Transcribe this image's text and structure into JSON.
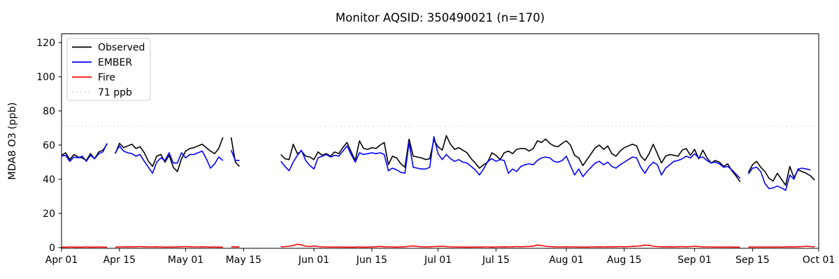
{
  "title": "Monitor AQSID: 350490021 (n=170)",
  "ylabel": "MDA8 O3 (ppb)",
  "colors": {
    "observed": "#000000",
    "ember": "#0000ff",
    "fire": "#ff0000",
    "threshold": "#d3d3d3",
    "axis": "#000000",
    "legend_border": "#cccccc",
    "background": "#ffffff"
  },
  "chart_data": {
    "type": "line",
    "title": "Monitor AQSID: 350490021 (n=170)",
    "xlabel": "",
    "ylabel": "MDA8 O3 (ppb)",
    "ylim": [
      -0.5,
      125.4
    ],
    "yticks": [
      0,
      20,
      40,
      60,
      80,
      100,
      120
    ],
    "x_tick_labels": [
      "Apr 01",
      "Apr 15",
      "May 01",
      "May 15",
      "Jun 01",
      "Jun 15",
      "Jul 01",
      "Jul 15",
      "Aug 01",
      "Aug 15",
      "Sep 01",
      "Sep 15",
      "Oct 01"
    ],
    "x_tick_days": [
      0,
      14,
      30,
      44,
      61,
      75,
      91,
      105,
      122,
      136,
      153,
      167,
      183
    ],
    "x_total_days": 183,
    "x_start_date": "Apr 01",
    "x_end_date": "Oct 01",
    "grid": false,
    "legend_position": "upper left",
    "reference_line": {
      "label": "71 ppb",
      "value": 71,
      "color": "#d3d3d3",
      "style": "dotted"
    },
    "legend": [
      {
        "label": "Observed",
        "color": "#000000",
        "dash": "solid"
      },
      {
        "label": "EMBER",
        "color": "#0000ff",
        "dash": "solid"
      },
      {
        "label": "Fire",
        "color": "#ff0000",
        "dash": "solid"
      },
      {
        "label": "71 ppb",
        "color": "#d3d3d3",
        "dash": "dotted"
      }
    ],
    "series": [
      {
        "name": "Observed",
        "color": "#000000",
        "values": [
          54,
          55.5,
          51.5,
          54.5,
          53,
          52.5,
          51,
          55,
          52,
          56,
          57,
          60.5,
          null,
          55,
          61,
          58.5,
          59.5,
          60.5,
          58,
          59,
          55.5,
          50.5,
          47.5,
          53.5,
          54.5,
          50,
          54,
          47,
          44.5,
          52,
          56.5,
          58,
          58.5,
          59.5,
          60.5,
          58.5,
          56.5,
          55,
          58,
          64.5,
          null,
          64.5,
          50,
          47.5,
          null,
          null,
          null,
          null,
          null,
          null,
          null,
          null,
          null,
          54.5,
          52,
          51.5,
          60.5,
          55,
          56.5,
          53.5,
          53,
          51.5,
          56,
          54,
          55,
          53.5,
          56,
          55,
          58.5,
          61.5,
          56,
          51,
          62.5,
          58,
          57.5,
          58.5,
          58,
          60,
          61.5,
          48.5,
          53.5,
          52.5,
          49,
          47,
          63.5,
          53.5,
          53,
          52.5,
          51.5,
          52,
          63,
          59,
          57,
          65.5,
          60.5,
          57.5,
          58.5,
          57,
          55.5,
          52,
          49.5,
          46.5,
          48.5,
          50,
          55.5,
          54,
          51.5,
          55.5,
          56.5,
          55,
          57.5,
          58,
          58,
          56.5,
          58,
          62.5,
          61.5,
          63.5,
          61,
          59.5,
          59,
          61,
          62.5,
          60,
          54,
          52.5,
          48,
          51.5,
          55,
          58.5,
          60,
          57.5,
          59.5,
          55,
          53.5,
          56.5,
          58.5,
          59.5,
          60.5,
          59.5,
          53.5,
          51,
          55,
          60.5,
          55,
          49.5,
          53.5,
          54.5,
          54,
          53.5,
          57,
          58,
          54,
          57.5,
          52,
          57,
          52.5,
          49.5,
          51,
          50,
          47.5,
          49,
          45,
          42,
          38.5,
          null,
          44,
          48.5,
          50.5,
          47,
          44.5,
          40.5,
          39,
          43.5,
          40,
          36.5,
          47.5,
          41,
          45.5,
          44.5,
          43.5,
          42,
          39.5
        ]
      },
      {
        "name": "EMBER",
        "color": "#0000ff",
        "values": [
          53.5,
          54,
          50.5,
          53,
          52.5,
          53.5,
          50.5,
          54,
          52,
          55,
          56,
          61,
          null,
          55.5,
          59.5,
          56.5,
          55.5,
          55,
          53.5,
          54.5,
          50.5,
          47,
          43.5,
          50,
          52.5,
          51,
          55.5,
          49.5,
          49.5,
          55.5,
          52.5,
          54.5,
          54.5,
          55.5,
          56.5,
          52,
          46.5,
          49,
          53,
          51,
          null,
          57,
          51,
          51,
          null,
          null,
          null,
          null,
          null,
          null,
          null,
          null,
          null,
          50.5,
          47.5,
          45,
          50,
          54,
          57,
          51,
          48,
          46,
          52.5,
          53.5,
          54.5,
          53,
          54,
          53.5,
          56.5,
          59.5,
          54.5,
          50,
          55.5,
          54.5,
          55,
          55.5,
          55,
          55.5,
          54.5,
          45,
          46.5,
          45.5,
          44,
          43.5,
          61.5,
          47,
          46.5,
          46,
          46,
          47,
          65,
          55,
          51.5,
          54.5,
          52,
          50.5,
          51.5,
          50,
          49.5,
          47.5,
          45.5,
          42.5,
          46,
          50.5,
          52,
          50.5,
          51.5,
          51,
          43.5,
          46,
          44.5,
          47.5,
          48.5,
          49,
          48.5,
          51,
          52.5,
          53,
          52.5,
          50.5,
          50,
          51,
          53.5,
          48,
          42.5,
          46,
          41.5,
          44.5,
          47,
          49.5,
          50.5,
          48.5,
          50,
          47.5,
          46.5,
          48.5,
          50,
          51.5,
          53,
          52.5,
          47,
          43.5,
          47.5,
          50,
          48.5,
          42.5,
          46.5,
          48.5,
          50.5,
          51,
          52,
          53.5,
          52.5,
          55,
          52.5,
          53,
          51,
          49.5,
          50,
          49,
          47,
          47.5,
          45.5,
          43,
          40.5,
          null,
          43,
          46.5,
          47,
          44.5,
          37.5,
          34.5,
          35,
          36,
          35,
          33.5,
          42.5,
          40,
          46,
          46.5,
          46,
          45.5,
          null
        ]
      },
      {
        "name": "Fire",
        "color": "#ff0000",
        "values": [
          0.3,
          0.3,
          0.4,
          0.3,
          0.3,
          0.3,
          0.4,
          0.3,
          0.3,
          0.4,
          0.3,
          0.3,
          null,
          0.3,
          0.4,
          0.4,
          0.5,
          0.4,
          0.5,
          0.6,
          0.5,
          0.4,
          0.4,
          0.5,
          0.4,
          0.3,
          0.4,
          0.3,
          0.4,
          0.5,
          0.6,
          0.5,
          0.4,
          0.4,
          0.5,
          0.4,
          0.3,
          0.4,
          0.3,
          0.3,
          null,
          0.4,
          0.5,
          0.3,
          null,
          null,
          null,
          null,
          null,
          null,
          null,
          null,
          null,
          0.4,
          0.6,
          0.8,
          1.2,
          2.0,
          1.6,
          0.8,
          0.6,
          1.0,
          0.6,
          0.4,
          0.4,
          0.3,
          0.4,
          0.3,
          0.4,
          0.3,
          0.3,
          0.3,
          0.4,
          0.3,
          0.3,
          0.4,
          0.5,
          0.7,
          0.5,
          0.4,
          0.4,
          0.3,
          0.4,
          0.5,
          0.8,
          1.0,
          0.7,
          0.5,
          0.4,
          0.5,
          0.6,
          0.7,
          0.8,
          0.6,
          0.4,
          0.4,
          0.3,
          0.4,
          0.3,
          0.3,
          0.4,
          0.3,
          0.4,
          0.4,
          0.3,
          0.4,
          0.4,
          0.5,
          0.4,
          0.5,
          0.6,
          0.5,
          0.6,
          0.7,
          0.9,
          1.5,
          1.2,
          0.8,
          0.6,
          0.5,
          0.4,
          0.4,
          0.5,
          0.4,
          0.4,
          0.3,
          0.4,
          0.3,
          0.4,
          0.4,
          0.5,
          0.4,
          0.5,
          0.4,
          0.5,
          0.6,
          0.5,
          0.6,
          0.7,
          0.8,
          1.0,
          1.5,
          1.3,
          0.8,
          0.6,
          0.5,
          0.4,
          0.5,
          0.4,
          0.5,
          0.6,
          0.5,
          0.6,
          0.8,
          0.6,
          0.5,
          0.4,
          0.4,
          0.3,
          0.4,
          0.3,
          0.4,
          0.3,
          0.3,
          0.3,
          null,
          0.3,
          0.4,
          0.3,
          0.4,
          0.3,
          0.4,
          0.3,
          0.4,
          0.3,
          0.4,
          0.5,
          0.4,
          0.5,
          0.6,
          0.8,
          0.6,
          0.5
        ]
      }
    ]
  }
}
